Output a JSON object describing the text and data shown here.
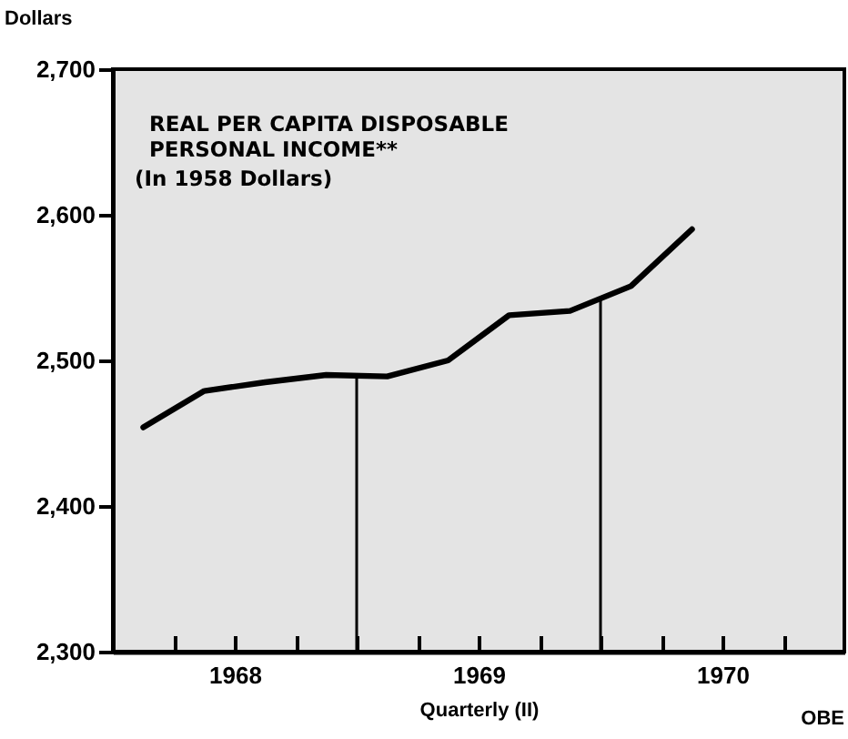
{
  "chart_data": {
    "type": "line",
    "title": "REAL PER CAPITA DISPOSABLE PERSONAL INCOME**",
    "subtitle": "(In 1958 Dollars)",
    "ylabel": "Dollars",
    "xlabel": "Quarterly (II)",
    "x": [
      1968.125,
      1968.375,
      1968.625,
      1968.875,
      1969.125,
      1969.375,
      1969.625,
      1969.875,
      1970.125,
      1970.375
    ],
    "series": [
      {
        "color": "#000000",
        "values": [
          2454,
          2479,
          2485,
          2490,
          2489,
          2500,
          2531,
          2534,
          2551,
          2590
        ]
      }
    ],
    "xlim": [
      1968,
      1971
    ],
    "xticks": [
      {
        "value": 1968.25,
        "label": null
      },
      {
        "value": 1968.5,
        "label": "1968"
      },
      {
        "value": 1968.75,
        "label": null
      },
      {
        "value": 1969,
        "label": null
      },
      {
        "value": 1969.25,
        "label": null
      },
      {
        "value": 1969.5,
        "label": "1969"
      },
      {
        "value": 1969.75,
        "label": null
      },
      {
        "value": 1970,
        "label": null
      },
      {
        "value": 1970.25,
        "label": null
      },
      {
        "value": 1970.5,
        "label": "1970"
      },
      {
        "value": 1970.75,
        "label": null
      }
    ],
    "ylim": [
      2300,
      2700
    ],
    "yticks": [
      {
        "value": 2300,
        "label": "2,300"
      },
      {
        "value": 2400,
        "label": "2,400"
      },
      {
        "value": 2500,
        "label": "2,500"
      },
      {
        "value": 2600,
        "label": "2,600"
      },
      {
        "value": 2700,
        "label": "2,700"
      }
    ],
    "ref_lines": [
      {
        "axis": "x",
        "value": 1969,
        "color": "#000000"
      },
      {
        "axis": "x",
        "value": 1970,
        "color": "#000000"
      }
    ],
    "annotations": [
      "OBE"
    ],
    "grid": false,
    "marker": "none",
    "line_style": "solid"
  }
}
